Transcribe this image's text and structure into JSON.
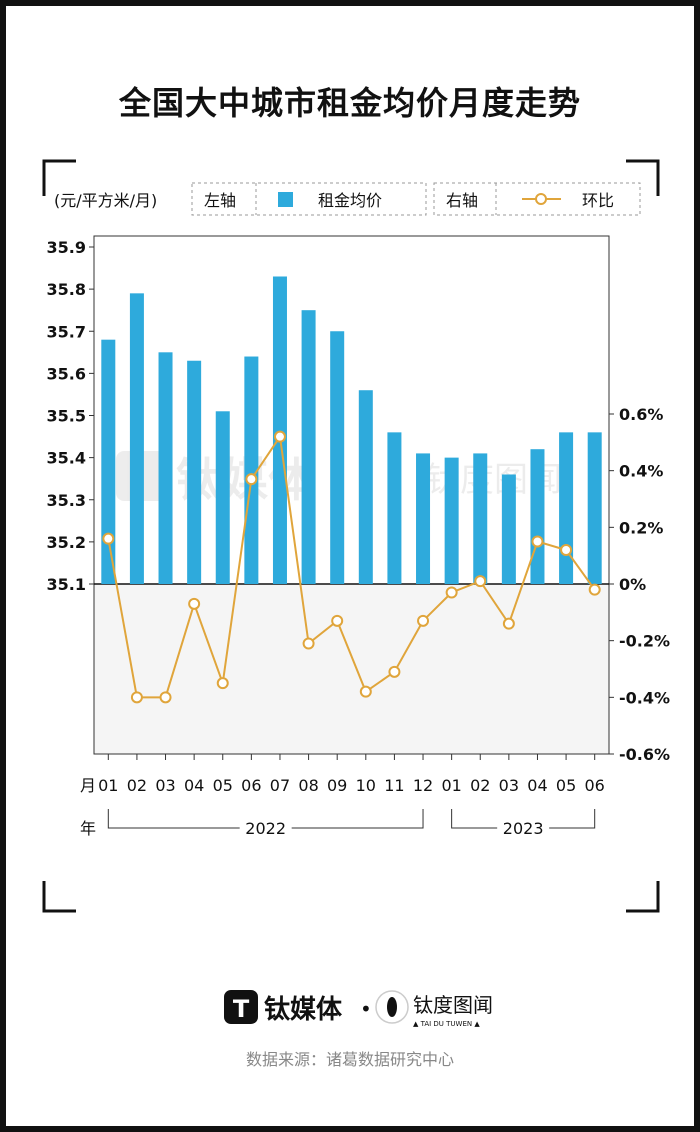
{
  "title": "全国大中城市租金均价月度走势",
  "legend": {
    "unit": "(元/平方米/月)",
    "left_axis": "左轴",
    "bar_label": "租金均价",
    "right_axis": "右轴",
    "line_label": "环比"
  },
  "axis_labels": {
    "month": "月",
    "year": "年"
  },
  "years": [
    {
      "label": "2022",
      "from": 0,
      "to": 11
    },
    {
      "label": "2023",
      "from": 12,
      "to": 17
    }
  ],
  "colors": {
    "bar": "#2eaadc",
    "line": "#e0a53b",
    "shade": "#f5f5f5"
  },
  "chart_data": {
    "type": "bar",
    "categories": [
      "01",
      "02",
      "03",
      "04",
      "05",
      "06",
      "07",
      "08",
      "09",
      "10",
      "11",
      "12",
      "01",
      "02",
      "03",
      "04",
      "05",
      "06"
    ],
    "series": [
      {
        "name": "租金均价",
        "axis": "left",
        "type": "bar",
        "values": [
          35.68,
          35.79,
          35.65,
          35.63,
          35.51,
          35.64,
          35.83,
          35.75,
          35.7,
          35.56,
          35.46,
          35.41,
          35.4,
          35.41,
          35.36,
          35.42,
          35.46,
          35.46
        ]
      },
      {
        "name": "环比",
        "axis": "right",
        "type": "line",
        "unit": "%",
        "values": [
          0.16,
          -0.4,
          -0.4,
          -0.07,
          -0.35,
          0.37,
          0.52,
          -0.21,
          -0.13,
          -0.38,
          -0.31,
          -0.13,
          -0.03,
          0.01,
          -0.14,
          0.15,
          0.12,
          -0.02
        ]
      }
    ],
    "left_axis": {
      "ylim": [
        35.1,
        35.9
      ],
      "ticks": [
        "35.1",
        "35.2",
        "35.3",
        "35.4",
        "35.5",
        "35.6",
        "35.7",
        "35.8",
        "35.9"
      ]
    },
    "right_axis": {
      "ylim": [
        -0.6,
        0.6
      ],
      "ticks": [
        "0.6%",
        "0.4%",
        "0.2%",
        "0%",
        "-0.2%",
        "-0.4%",
        "-0.6%"
      ]
    }
  },
  "brand": {
    "name1": "钛媒体",
    "dot": "•",
    "name2": "钛度图闻",
    "name2_sub": "▲ TAI DU TUWEN ▲",
    "t_glyph": "T"
  },
  "source": "数据来源：诸葛数据研究中心"
}
